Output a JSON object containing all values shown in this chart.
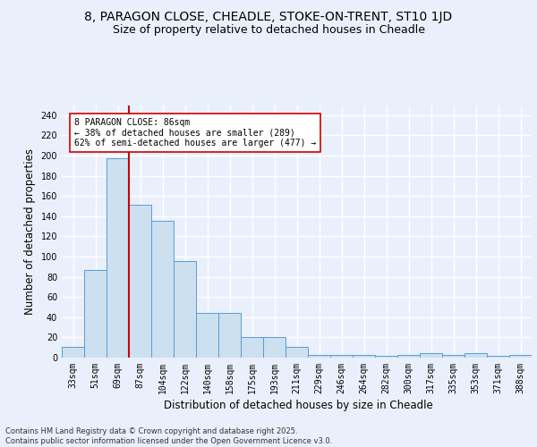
{
  "title_line1": "8, PARAGON CLOSE, CHEADLE, STOKE-ON-TRENT, ST10 1JD",
  "title_line2": "Size of property relative to detached houses in Cheadle",
  "xlabel": "Distribution of detached houses by size in Cheadle",
  "ylabel": "Number of detached properties",
  "categories": [
    "33sqm",
    "51sqm",
    "69sqm",
    "87sqm",
    "104sqm",
    "122sqm",
    "140sqm",
    "158sqm",
    "175sqm",
    "193sqm",
    "211sqm",
    "229sqm",
    "246sqm",
    "264sqm",
    "282sqm",
    "300sqm",
    "317sqm",
    "335sqm",
    "353sqm",
    "371sqm",
    "388sqm"
  ],
  "values": [
    11,
    87,
    197,
    151,
    135,
    96,
    44,
    44,
    20,
    20,
    11,
    3,
    3,
    3,
    2,
    3,
    4,
    3,
    4,
    2,
    3
  ],
  "bar_color": "#cce0f0",
  "bar_edge_color": "#5b9bd5",
  "vline_x": 2.5,
  "vline_color": "#cc0000",
  "annotation_text": "8 PARAGON CLOSE: 86sqm\n← 38% of detached houses are smaller (289)\n62% of semi-detached houses are larger (477) →",
  "annotation_box_color": "#ffffff",
  "annotation_box_edge": "#cc0000",
  "ylim": [
    0,
    250
  ],
  "yticks": [
    0,
    20,
    40,
    60,
    80,
    100,
    120,
    140,
    160,
    180,
    200,
    220,
    240
  ],
  "footer": "Contains HM Land Registry data © Crown copyright and database right 2025.\nContains public sector information licensed under the Open Government Licence v3.0.",
  "background_color": "#eaf0fb",
  "plot_bg_color": "#eaf0fb",
  "grid_color": "#ffffff",
  "title_fontsize": 10,
  "subtitle_fontsize": 9,
  "tick_fontsize": 7,
  "label_fontsize": 8.5
}
